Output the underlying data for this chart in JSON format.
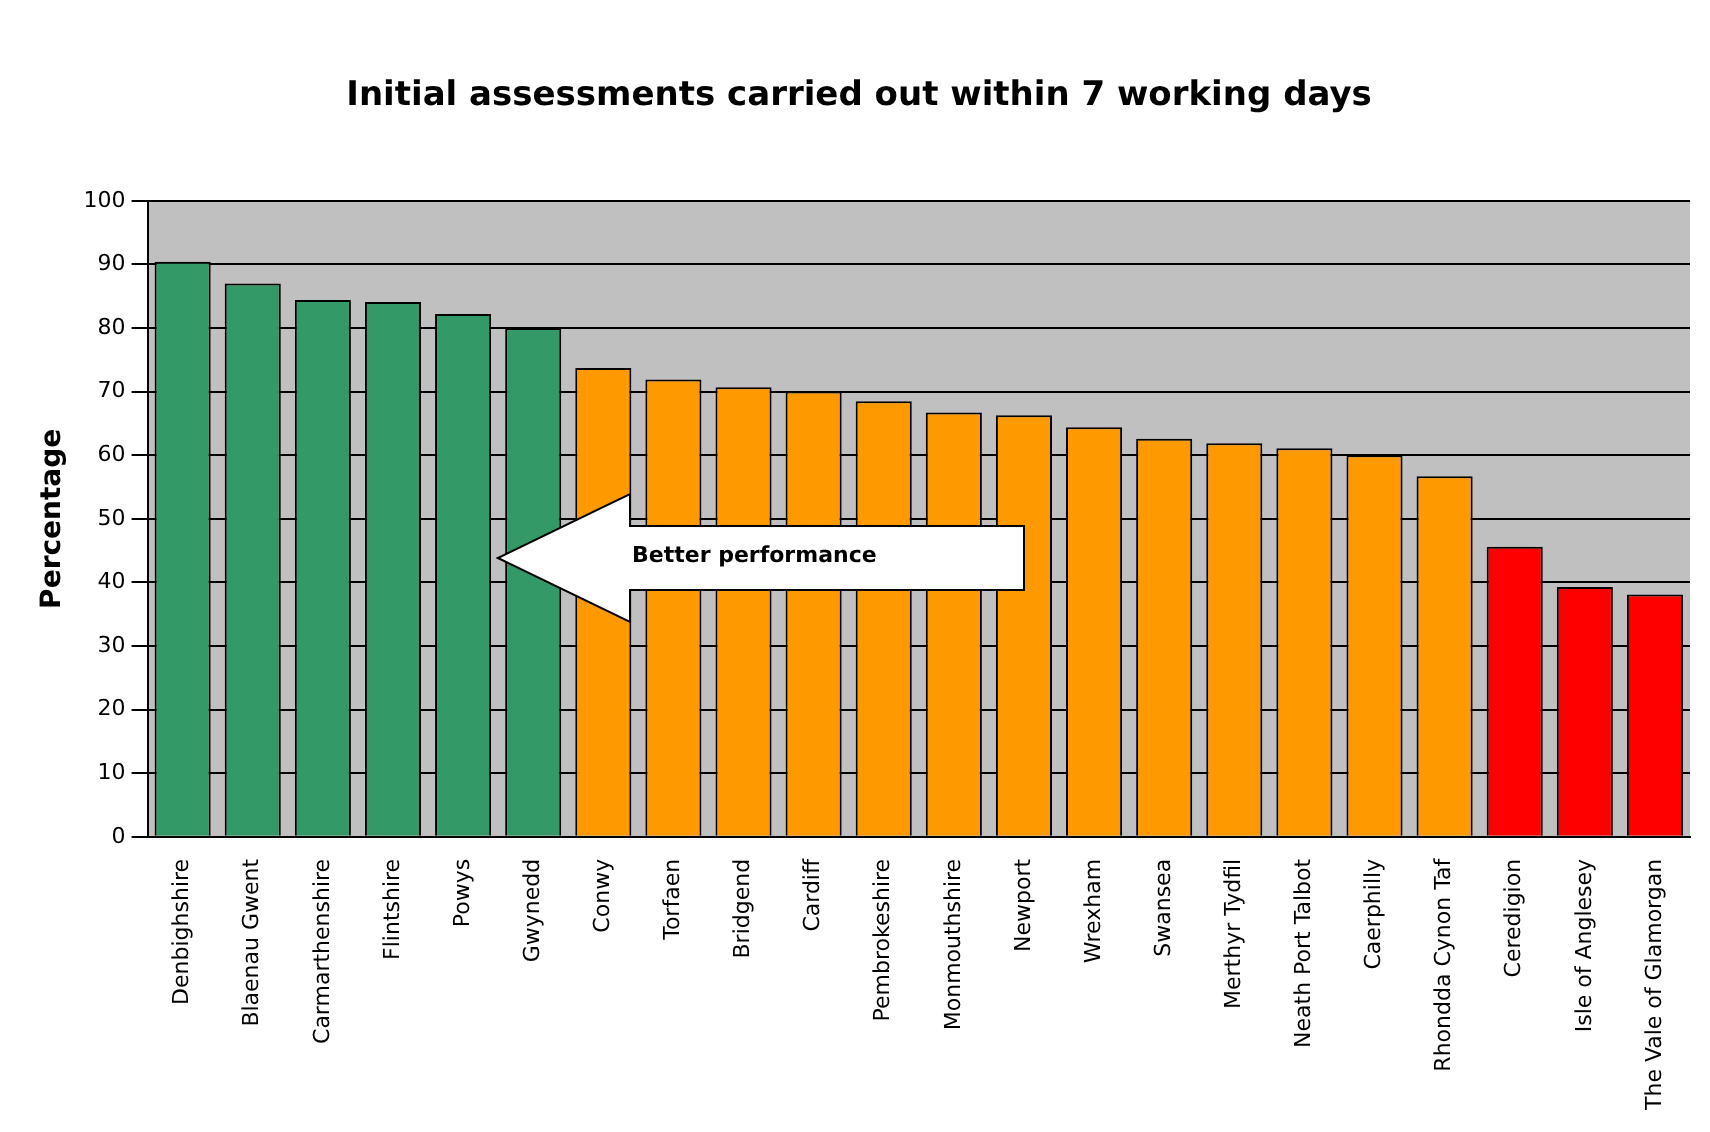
{
  "chart_data": {
    "type": "bar",
    "title": "Initial assessments carried out within 7 working days",
    "ylabel": "Percentage",
    "categories": [
      "Denbighshire",
      "Blaenau Gwent",
      "Carmarthenshire",
      "Flintshire",
      "Powys",
      "Gwynedd",
      "Conwy",
      "Torfaen",
      "Bridgend",
      "Cardiff",
      "Pembrokeshire",
      "Monmouthshire",
      "Newport",
      "Wrexham",
      "Swansea",
      "Merthyr Tydfil",
      "Neath Port Talbot",
      "Caerphilly",
      "Rhondda Cynon Taf",
      "Ceredigion",
      "Isle of Anglesey",
      "The Vale of Glamorgan"
    ],
    "values": [
      90.4,
      87,
      84.4,
      84.1,
      82.2,
      80,
      73.7,
      71.9,
      70.7,
      70,
      68.5,
      66.7,
      66.3,
      64.4,
      62.6,
      61.9,
      61.1,
      60,
      56.7,
      45.6,
      39.3,
      38.1
    ],
    "colors": [
      "#339966",
      "#339966",
      "#339966",
      "#339966",
      "#339966",
      "#339966",
      "#ff9900",
      "#ff9900",
      "#ff9900",
      "#ff9900",
      "#ff9900",
      "#ff9900",
      "#ff9900",
      "#ff9900",
      "#ff9900",
      "#ff9900",
      "#ff9900",
      "#ff9900",
      "#ff9900",
      "#ff0000",
      "#ff0000",
      "#ff0000"
    ],
    "ylim": [
      0,
      100
    ],
    "yticks": [
      0,
      10,
      20,
      30,
      40,
      50,
      60,
      70,
      80,
      90,
      100
    ],
    "grid": "y",
    "legend": false,
    "annotations": [
      "Better performance"
    ]
  }
}
